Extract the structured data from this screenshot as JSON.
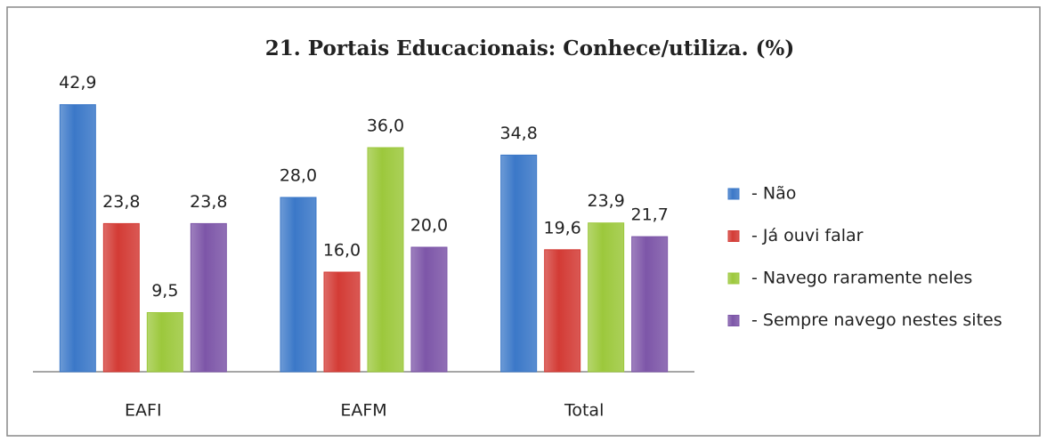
{
  "chart_data": {
    "type": "bar",
    "title": "21. Portais Educacionais: Conhece/utiliza. (%)",
    "categories": [
      "EAFI",
      "EAFM",
      "Total"
    ],
    "series": [
      {
        "name": "- Não",
        "color": "#3b78c8",
        "values": [
          42.9,
          28.0,
          34.8
        ],
        "value_labels": [
          "42,9",
          "28,0",
          "34,8"
        ]
      },
      {
        "name": "- Já ouvi falar",
        "color": "#d33b35",
        "values": [
          23.8,
          16.0,
          19.6
        ],
        "value_labels": [
          "23,8",
          "16,0",
          "19,6"
        ]
      },
      {
        "name": "- Navego raramente neles",
        "color": "#9cc83c",
        "values": [
          9.5,
          36.0,
          23.9
        ],
        "value_labels": [
          "9,5",
          "36,0",
          "23,9"
        ]
      },
      {
        "name": "- Sempre navego nestes sites",
        "color": "#7d56a8",
        "values": [
          23.8,
          20.0,
          21.7
        ],
        "value_labels": [
          "23,8",
          "20,0",
          "21,7"
        ]
      }
    ],
    "ylim": [
      0,
      50
    ],
    "legend": "right"
  }
}
